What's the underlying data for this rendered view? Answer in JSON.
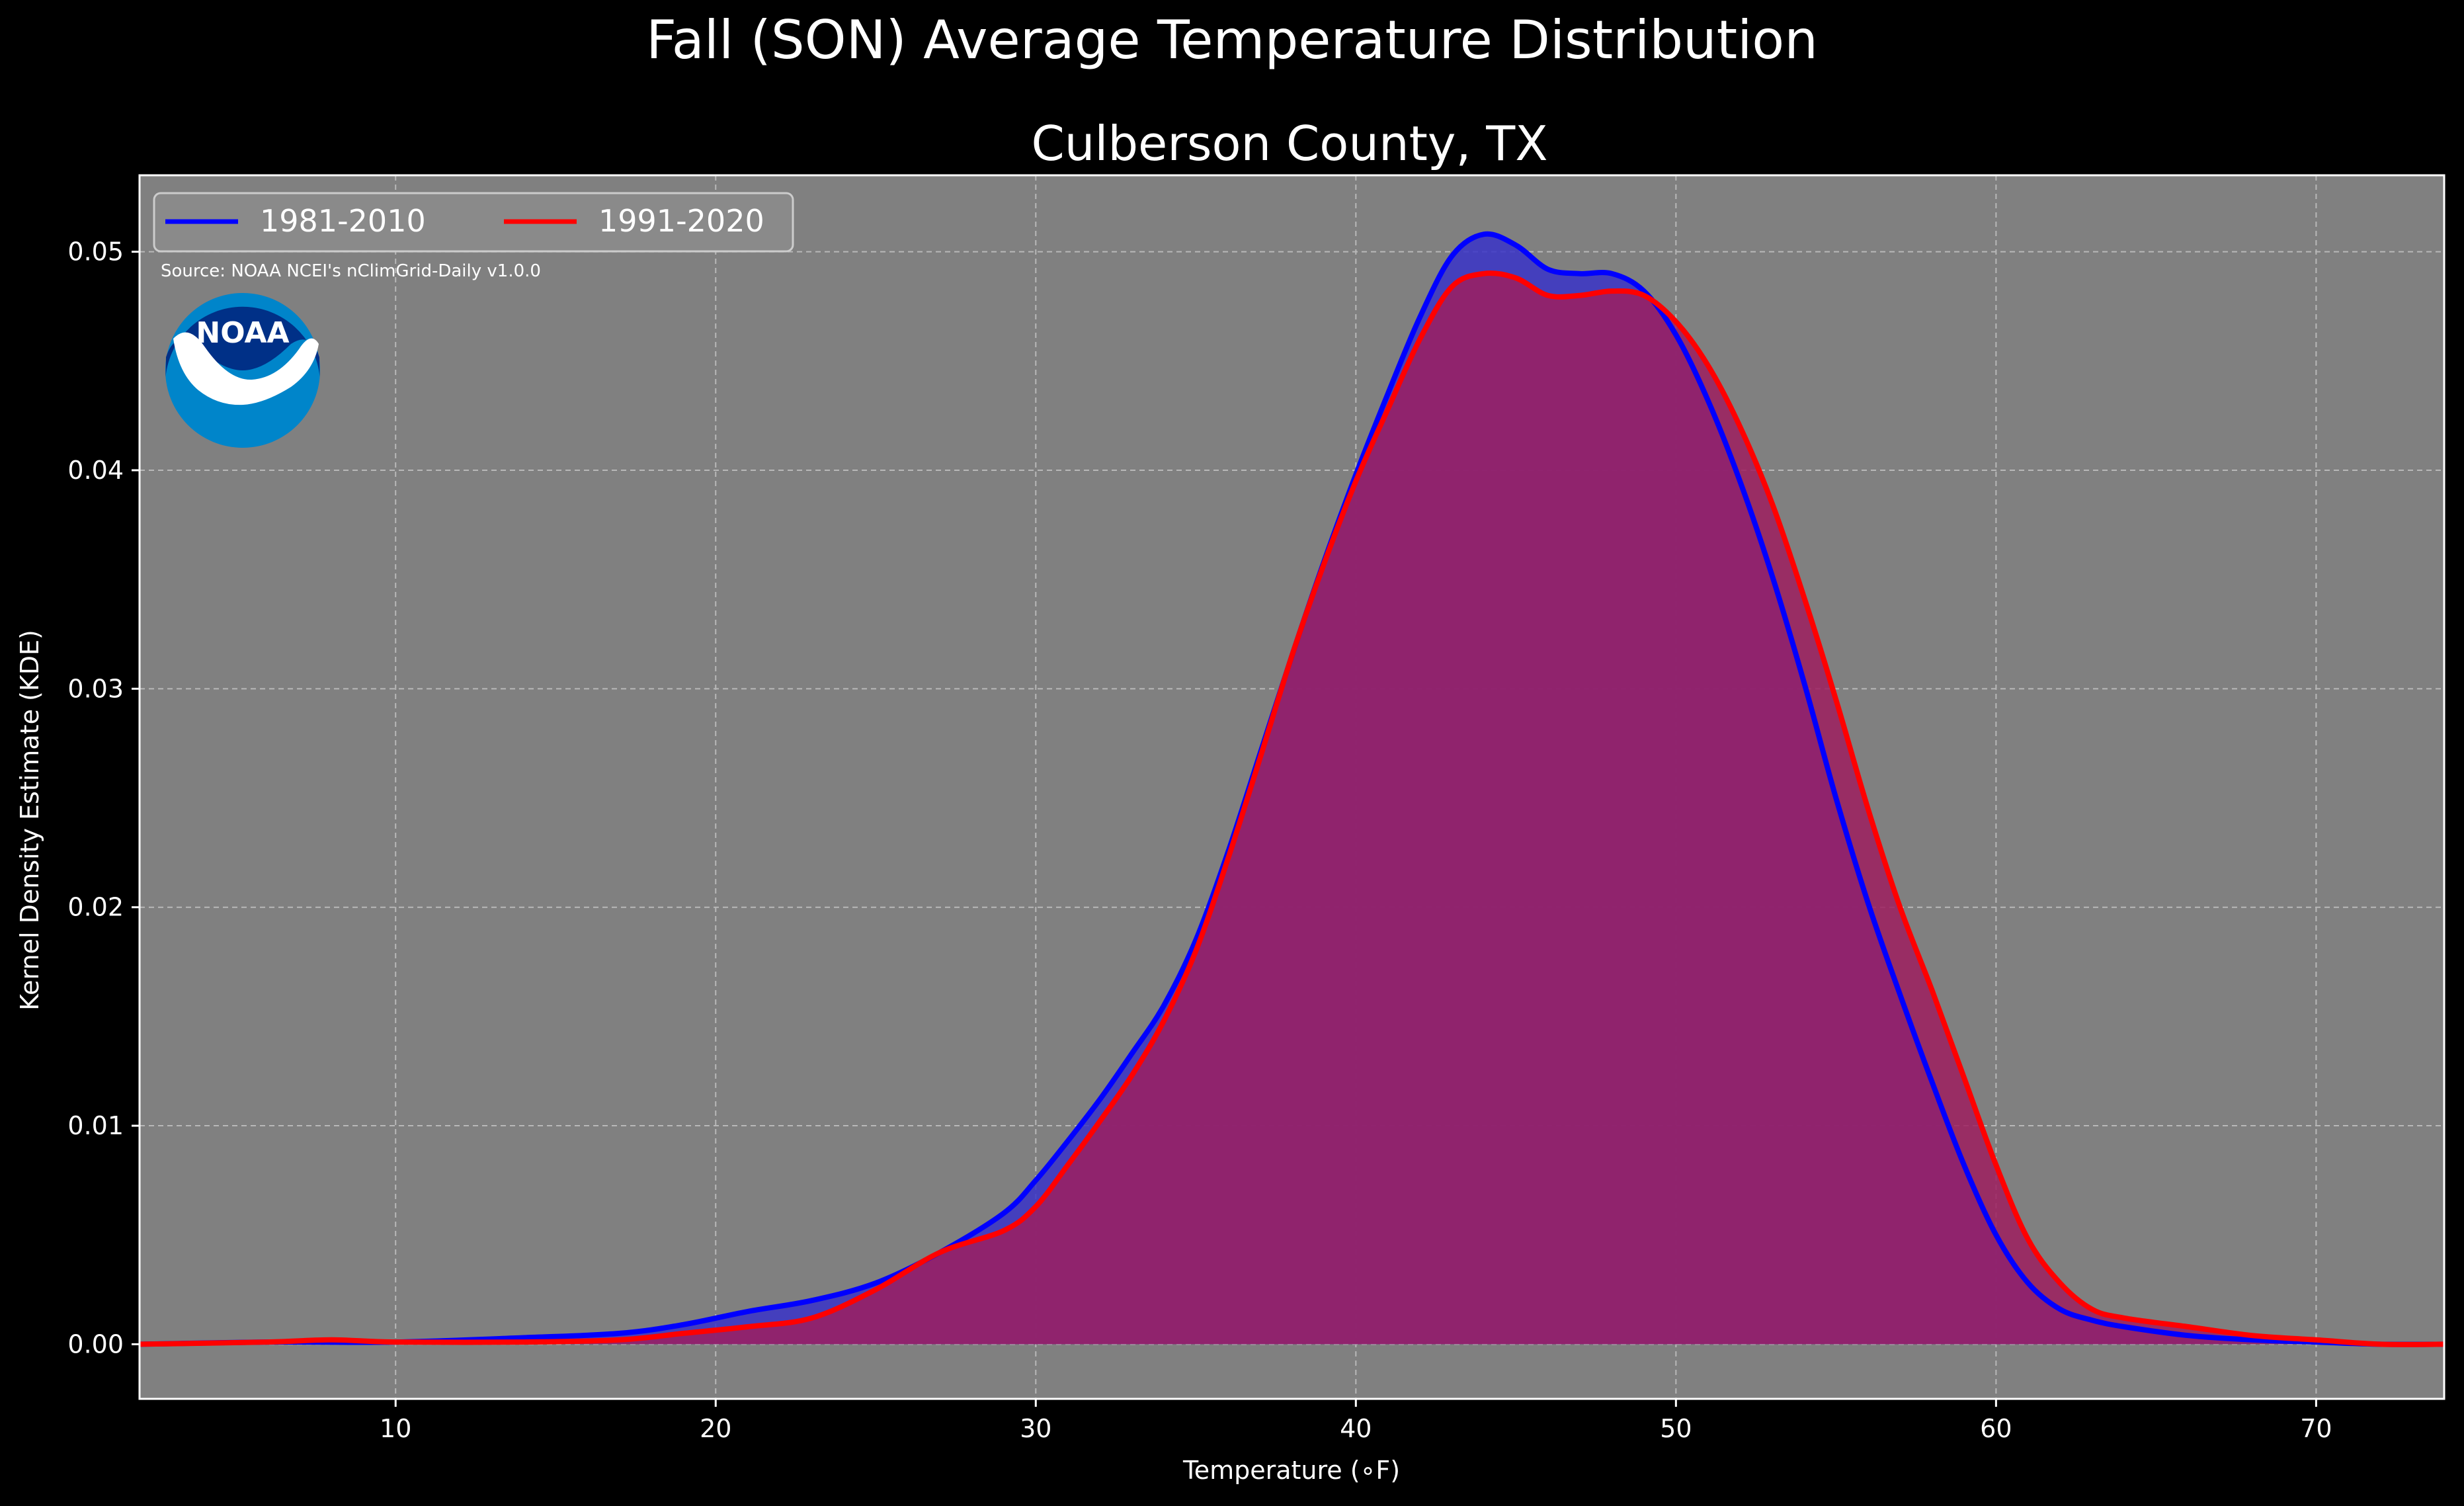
{
  "chart_data": {
    "type": "area",
    "suptitle": "Fall (SON) Average Temperature Distribution",
    "title": "Culberson County, TX",
    "xlabel": "Temperature ($^\\circ$F)",
    "xlabel_display": "Temperature (∘F)",
    "ylabel": "Kernel Density Estimate (KDE)",
    "xlim": [
      2,
      74
    ],
    "ylim": [
      -0.0025,
      0.0535
    ],
    "xticks": [
      10,
      20,
      30,
      40,
      50,
      60,
      70
    ],
    "xtick_labels": [
      "10",
      "20",
      "30",
      "40",
      "50",
      "60",
      "70"
    ],
    "yticks": [
      0.0,
      0.01,
      0.02,
      0.03,
      0.04,
      0.05
    ],
    "ytick_labels": [
      "0.00",
      "0.01",
      "0.02",
      "0.03",
      "0.04",
      "0.05"
    ],
    "grid": true,
    "background": "#808080",
    "legend": {
      "placement": "upper left",
      "ncol": 2
    },
    "source_note": "Source: NOAA NCEI's nClimGrid-Daily v1.0.0",
    "logo_text": "NOAA",
    "series": [
      {
        "name": "1981-2010",
        "color": "#0000ff",
        "fill": "#3a34c8",
        "x": [
          2,
          6,
          10,
          14,
          17,
          19,
          21,
          23,
          25,
          27,
          29,
          30,
          31,
          32,
          33,
          34,
          35,
          36,
          37,
          38,
          39,
          40,
          41,
          42,
          43,
          44,
          45,
          46,
          47,
          48,
          49,
          50,
          51,
          52,
          53,
          54,
          55,
          56,
          57,
          58,
          59,
          60,
          61,
          62,
          63,
          64,
          66,
          68,
          70,
          72,
          74
        ],
        "y": [
          0.0,
          0.0001,
          0.0001,
          0.0003,
          0.0005,
          0.0009,
          0.0015,
          0.002,
          0.0028,
          0.0042,
          0.006,
          0.0075,
          0.0093,
          0.0112,
          0.0133,
          0.0155,
          0.0185,
          0.0225,
          0.027,
          0.0315,
          0.0358,
          0.0398,
          0.0435,
          0.047,
          0.0498,
          0.0508,
          0.0503,
          0.0492,
          0.049,
          0.049,
          0.0482,
          0.0462,
          0.0432,
          0.0395,
          0.0352,
          0.0303,
          0.025,
          0.0202,
          0.016,
          0.012,
          0.0082,
          0.005,
          0.0028,
          0.0016,
          0.0011,
          0.0008,
          0.0004,
          0.0002,
          0.0001,
          0.0,
          0.0
        ]
      },
      {
        "name": "1991-2020",
        "color": "#ff0000",
        "fill": "#9e1f5f",
        "x": [
          2,
          6,
          8,
          10,
          14,
          17,
          19,
          21,
          23,
          25,
          27,
          29,
          30,
          31,
          32,
          33,
          34,
          35,
          36,
          37,
          38,
          39,
          40,
          41,
          42,
          43,
          44,
          45,
          46,
          47,
          48,
          49,
          50,
          51,
          52,
          53,
          54,
          55,
          56,
          57,
          58,
          59,
          60,
          61,
          62,
          63,
          64,
          66,
          68,
          70,
          72,
          74
        ],
        "y": [
          0.0,
          0.0001,
          0.0002,
          0.0001,
          0.0001,
          0.0002,
          0.0005,
          0.0008,
          0.0012,
          0.0025,
          0.0042,
          0.0052,
          0.0063,
          0.0082,
          0.0102,
          0.0123,
          0.0148,
          0.018,
          0.0222,
          0.0268,
          0.0315,
          0.0357,
          0.0395,
          0.0428,
          0.046,
          0.0484,
          0.049,
          0.0488,
          0.048,
          0.048,
          0.0482,
          0.048,
          0.0468,
          0.0448,
          0.042,
          0.0385,
          0.0342,
          0.0295,
          0.0245,
          0.02,
          0.0162,
          0.0122,
          0.0082,
          0.0048,
          0.0028,
          0.0016,
          0.0012,
          0.0008,
          0.0004,
          0.0002,
          0.0,
          0.0
        ]
      }
    ]
  }
}
